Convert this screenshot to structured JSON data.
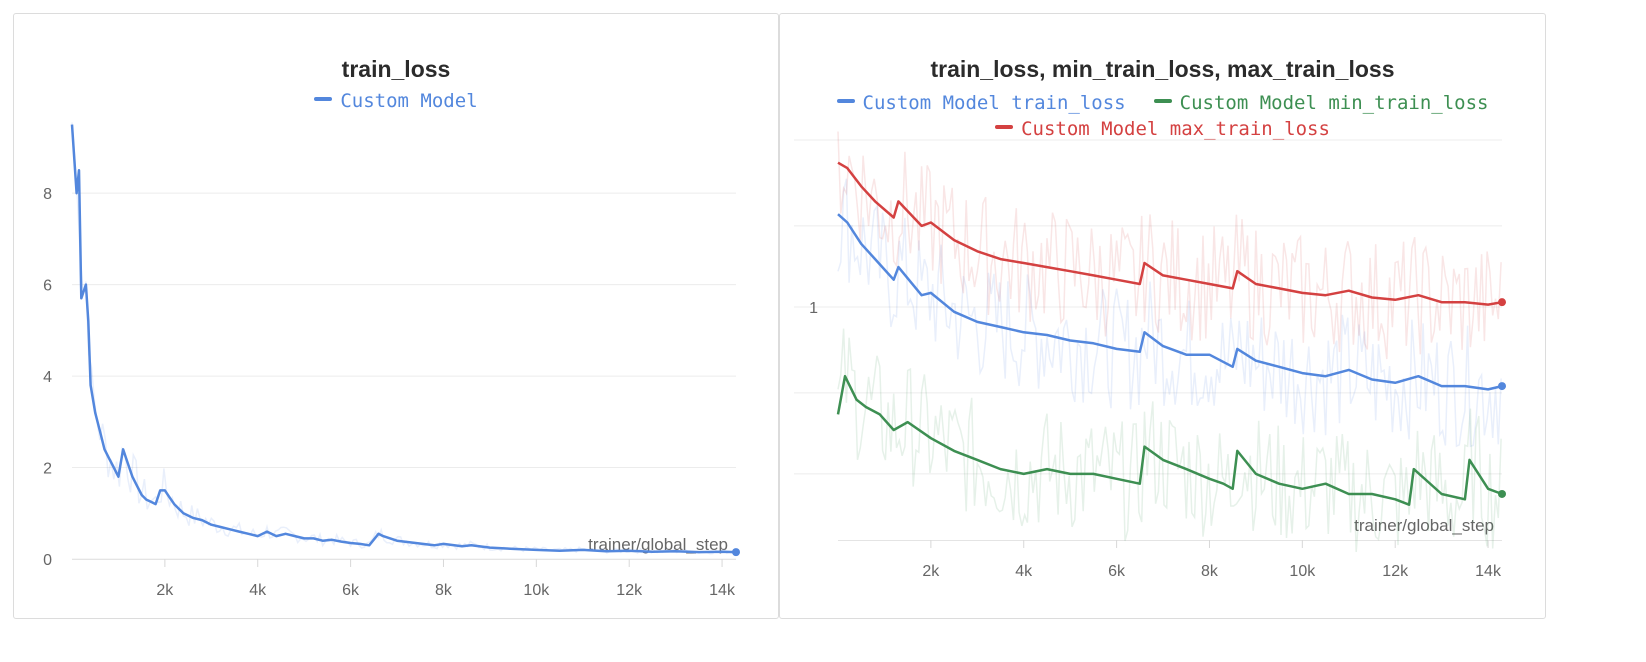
{
  "chart_data": [
    {
      "type": "line",
      "title": "train_loss",
      "xlabel": "trainer/global_step",
      "ylabel": "",
      "xlim": [
        0,
        14300
      ],
      "ylim": [
        0,
        9.6
      ],
      "x_ticks": [
        2000,
        4000,
        6000,
        8000,
        10000,
        12000,
        14000
      ],
      "x_tick_labels": [
        "2k",
        "4k",
        "6k",
        "8k",
        "10k",
        "12k",
        "14k"
      ],
      "y_ticks": [
        0,
        2,
        4,
        6,
        8
      ],
      "y_tick_labels": [
        "0",
        "2",
        "4",
        "6",
        "8"
      ],
      "grid": true,
      "legend_position": "top-center",
      "series": [
        {
          "name": "Custom Model",
          "color": "#5387dd",
          "x": [
            0,
            100,
            150,
            200,
            300,
            350,
            400,
            500,
            600,
            700,
            800,
            900,
            1000,
            1100,
            1200,
            1300,
            1400,
            1500,
            1600,
            1700,
            1800,
            1900,
            2000,
            2100,
            2200,
            2300,
            2400,
            2600,
            2800,
            3000,
            3200,
            3400,
            3600,
            3800,
            4000,
            4200,
            4400,
            4600,
            4800,
            5000,
            5200,
            5400,
            5600,
            5800,
            6000,
            6200,
            6400,
            6600,
            6700,
            7000,
            7400,
            7800,
            8000,
            8400,
            8600,
            9000,
            9500,
            10000,
            10500,
            11000,
            11500,
            12000,
            12500,
            13000,
            13500,
            14000,
            14300
          ],
          "values": [
            9.5,
            8.0,
            8.5,
            5.7,
            6.0,
            5.2,
            3.8,
            3.2,
            2.8,
            2.4,
            2.2,
            2.0,
            1.8,
            2.4,
            2.1,
            1.8,
            1.6,
            1.4,
            1.3,
            1.25,
            1.2,
            1.5,
            1.5,
            1.35,
            1.2,
            1.1,
            1.0,
            0.9,
            0.85,
            0.75,
            0.7,
            0.65,
            0.6,
            0.55,
            0.5,
            0.6,
            0.5,
            0.55,
            0.5,
            0.45,
            0.45,
            0.4,
            0.42,
            0.38,
            0.35,
            0.33,
            0.3,
            0.55,
            0.5,
            0.4,
            0.35,
            0.3,
            0.33,
            0.28,
            0.3,
            0.25,
            0.22,
            0.2,
            0.18,
            0.2,
            0.17,
            0.18,
            0.16,
            0.17,
            0.15,
            0.16,
            0.15
          ]
        }
      ]
    },
    {
      "type": "line",
      "title": "train_loss, min_train_loss, max_train_loss",
      "xlabel": "trainer/global_step",
      "ylabel": "",
      "y_scale": "log",
      "xlim": [
        0,
        14300
      ],
      "x_ticks": [
        2000,
        4000,
        6000,
        8000,
        10000,
        12000,
        14000
      ],
      "x_tick_labels": [
        "2k",
        "4k",
        "6k",
        "8k",
        "10k",
        "12k",
        "14k"
      ],
      "y_ticks": [
        1
      ],
      "y_tick_labels": [
        "1"
      ],
      "grid": true,
      "legend_position": "top-center",
      "series": [
        {
          "name": "Custom Model train_loss",
          "color": "#5387dd",
          "x": [
            0,
            200,
            500,
            800,
            1200,
            1300,
            1800,
            2000,
            2500,
            3000,
            3500,
            4000,
            4500,
            5000,
            5500,
            6000,
            6500,
            6600,
            7000,
            7500,
            8000,
            8500,
            8600,
            9000,
            9500,
            10000,
            10500,
            11000,
            11500,
            12000,
            12500,
            13000,
            13500,
            14000,
            14300
          ],
          "values": [
            1.47,
            1.42,
            1.3,
            1.22,
            1.12,
            1.18,
            1.05,
            1.06,
            0.98,
            0.94,
            0.92,
            0.9,
            0.89,
            0.87,
            0.86,
            0.84,
            0.83,
            0.9,
            0.85,
            0.82,
            0.82,
            0.78,
            0.84,
            0.8,
            0.78,
            0.76,
            0.75,
            0.77,
            0.74,
            0.73,
            0.75,
            0.72,
            0.72,
            0.71,
            0.72
          ]
        },
        {
          "name": "Custom Model min_train_loss",
          "color": "#3d8f52",
          "x": [
            0,
            150,
            400,
            600,
            900,
            1200,
            1500,
            2000,
            2500,
            3000,
            3500,
            4000,
            4500,
            5000,
            5500,
            6000,
            6500,
            6600,
            7000,
            7500,
            8000,
            8300,
            8500,
            8600,
            9000,
            9500,
            10000,
            10500,
            11000,
            11500,
            12000,
            12300,
            12400,
            13000,
            13500,
            13600,
            14000,
            14300
          ],
          "values": [
            0.64,
            0.75,
            0.68,
            0.66,
            0.64,
            0.6,
            0.62,
            0.58,
            0.55,
            0.53,
            0.51,
            0.5,
            0.51,
            0.5,
            0.5,
            0.49,
            0.48,
            0.56,
            0.53,
            0.51,
            0.49,
            0.48,
            0.47,
            0.55,
            0.5,
            0.48,
            0.47,
            0.48,
            0.46,
            0.46,
            0.45,
            0.44,
            0.51,
            0.46,
            0.45,
            0.53,
            0.47,
            0.46
          ]
        },
        {
          "name": "Custom Model max_train_loss",
          "color": "#d44141",
          "x": [
            0,
            200,
            500,
            800,
            1200,
            1300,
            1800,
            2000,
            2500,
            3000,
            3500,
            4000,
            4500,
            5000,
            5500,
            6000,
            6500,
            6600,
            7000,
            7500,
            8000,
            8500,
            8600,
            9000,
            9500,
            10000,
            10500,
            11000,
            11500,
            12000,
            12500,
            13000,
            13500,
            14000,
            14300
          ],
          "values": [
            1.82,
            1.78,
            1.65,
            1.55,
            1.45,
            1.55,
            1.4,
            1.42,
            1.32,
            1.26,
            1.22,
            1.2,
            1.18,
            1.16,
            1.14,
            1.12,
            1.1,
            1.2,
            1.14,
            1.12,
            1.1,
            1.08,
            1.16,
            1.1,
            1.08,
            1.06,
            1.05,
            1.07,
            1.04,
            1.03,
            1.05,
            1.02,
            1.02,
            1.01,
            1.02
          ]
        }
      ]
    }
  ]
}
